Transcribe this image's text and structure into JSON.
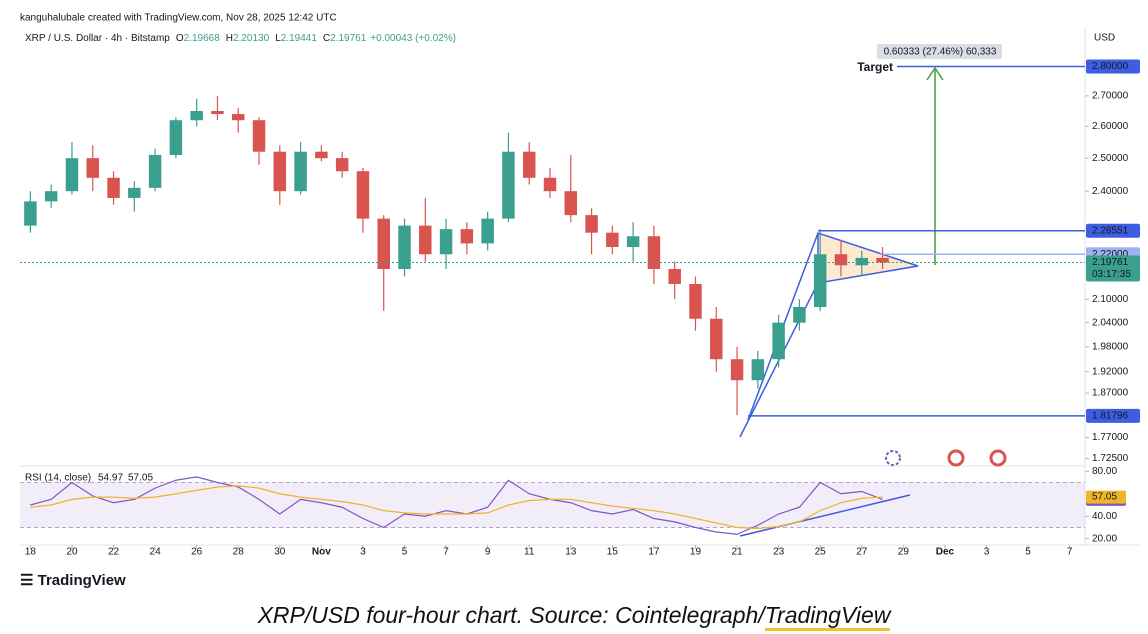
{
  "header": {
    "credit": "kanguhalubale created with TradingView.com, Nov 28, 2025 12:42 UTC",
    "symbol": "XRP / U.S. Dollar · 4h · Bitstamp",
    "ohlc": [
      {
        "key": "O",
        "value": "2.19668"
      },
      {
        "key": "H",
        "value": "2.20130"
      },
      {
        "key": "L",
        "value": "2.19441"
      },
      {
        "key": "C",
        "value": "2.19761"
      }
    ],
    "change": "+0.00043 (+0.02%)",
    "currency": "USD"
  },
  "chart_data": [
    {
      "type": "candlestick",
      "x": [
        1,
        2,
        3,
        4,
        5,
        6,
        7,
        8,
        9,
        10,
        11,
        12,
        13,
        14,
        15,
        16,
        17,
        18,
        19,
        20,
        21,
        22,
        23,
        24,
        25,
        26,
        27,
        28,
        29,
        30,
        31,
        32,
        33,
        34,
        35,
        36,
        37,
        38,
        39,
        40,
        41,
        42
      ],
      "ohlc": [
        [
          2.3,
          2.4,
          2.28,
          2.37
        ],
        [
          2.37,
          2.42,
          2.35,
          2.4
        ],
        [
          2.4,
          2.55,
          2.39,
          2.5
        ],
        [
          2.5,
          2.54,
          2.4,
          2.44
        ],
        [
          2.44,
          2.46,
          2.36,
          2.38
        ],
        [
          2.38,
          2.43,
          2.34,
          2.41
        ],
        [
          2.41,
          2.53,
          2.4,
          2.51
        ],
        [
          2.51,
          2.63,
          2.5,
          2.62
        ],
        [
          2.62,
          2.69,
          2.6,
          2.65
        ],
        [
          2.65,
          2.7,
          2.62,
          2.64
        ],
        [
          2.64,
          2.66,
          2.58,
          2.62
        ],
        [
          2.62,
          2.63,
          2.48,
          2.52
        ],
        [
          2.52,
          2.54,
          2.36,
          2.4
        ],
        [
          2.4,
          2.55,
          2.39,
          2.52
        ],
        [
          2.52,
          2.54,
          2.49,
          2.5
        ],
        [
          2.5,
          2.52,
          2.44,
          2.46
        ],
        [
          2.46,
          2.47,
          2.28,
          2.32
        ],
        [
          2.32,
          2.33,
          2.07,
          2.18
        ],
        [
          2.18,
          2.32,
          2.16,
          2.3
        ],
        [
          2.3,
          2.38,
          2.2,
          2.22
        ],
        [
          2.22,
          2.32,
          2.18,
          2.29
        ],
        [
          2.29,
          2.31,
          2.22,
          2.25
        ],
        [
          2.25,
          2.34,
          2.23,
          2.32
        ],
        [
          2.32,
          2.58,
          2.31,
          2.52
        ],
        [
          2.52,
          2.55,
          2.42,
          2.44
        ],
        [
          2.44,
          2.47,
          2.38,
          2.4
        ],
        [
          2.4,
          2.51,
          2.31,
          2.33
        ],
        [
          2.33,
          2.35,
          2.22,
          2.28
        ],
        [
          2.28,
          2.3,
          2.22,
          2.24
        ],
        [
          2.24,
          2.31,
          2.2,
          2.27
        ],
        [
          2.27,
          2.3,
          2.14,
          2.18
        ],
        [
          2.18,
          2.2,
          2.1,
          2.14
        ],
        [
          2.14,
          2.16,
          2.02,
          2.05
        ],
        [
          2.05,
          2.08,
          1.92,
          1.95
        ],
        [
          1.95,
          1.98,
          1.82,
          1.9
        ],
        [
          1.9,
          1.97,
          1.88,
          1.95
        ],
        [
          1.95,
          2.06,
          1.93,
          2.04
        ],
        [
          2.04,
          2.1,
          2.02,
          2.08
        ],
        [
          2.08,
          2.29,
          2.07,
          2.22
        ],
        [
          2.22,
          2.26,
          2.16,
          2.19
        ],
        [
          2.19,
          2.23,
          2.16,
          2.21
        ],
        [
          2.21,
          2.24,
          2.18,
          2.19761
        ]
      ],
      "up_color": "#3a9f8e",
      "down_color": "#d9534f",
      "log": true,
      "xlim": [
        0.5,
        51.5
      ],
      "xticks": [
        {
          "value": 1,
          "label": "18"
        },
        {
          "value": 3,
          "label": "20"
        },
        {
          "value": 5,
          "label": "22"
        },
        {
          "value": 7,
          "label": "24"
        },
        {
          "value": 9,
          "label": "26"
        },
        {
          "value": 11,
          "label": "28"
        },
        {
          "value": 13,
          "label": "30"
        },
        {
          "value": 15,
          "label": "Nov"
        },
        {
          "value": 17,
          "label": "3"
        },
        {
          "value": 19,
          "label": "5"
        },
        {
          "value": 21,
          "label": "7"
        },
        {
          "value": 23,
          "label": "9"
        },
        {
          "value": 25,
          "label": "11"
        },
        {
          "value": 27,
          "label": "13"
        },
        {
          "value": 29,
          "label": "15"
        },
        {
          "value": 31,
          "label": "17"
        },
        {
          "value": 33,
          "label": "19"
        },
        {
          "value": 35,
          "label": "21"
        },
        {
          "value": 37,
          "label": "23"
        },
        {
          "value": 39,
          "label": "25"
        },
        {
          "value": 41,
          "label": "27"
        },
        {
          "value": 43,
          "label": "29"
        },
        {
          "value": 45,
          "label": "Dec"
        },
        {
          "value": 47,
          "label": "3"
        },
        {
          "value": 49,
          "label": "5"
        },
        {
          "value": 51,
          "label": "7"
        }
      ],
      "ylim": [
        1.711,
        2.929
      ],
      "yticks": [
        {
          "value": 2.7,
          "label": "2.70000"
        },
        {
          "value": 2.6,
          "label": "2.60000"
        },
        {
          "value": 2.5,
          "label": "2.50000"
        },
        {
          "value": 2.4,
          "label": "2.40000"
        },
        {
          "value": 2.1,
          "label": "2.10000"
        },
        {
          "value": 2.04,
          "label": "2.04000"
        },
        {
          "value": 1.98,
          "label": "1.98000"
        },
        {
          "value": 1.92,
          "label": "1.92000"
        },
        {
          "value": 1.87,
          "label": "1.87000"
        },
        {
          "value": 1.77,
          "label": "1.77000"
        },
        {
          "value": 1.725,
          "label": "1.72500"
        }
      ],
      "price_lines": [
        {
          "value": 2.8,
          "label": "2.80000",
          "color": "#3d5ee0"
        },
        {
          "value": 2.28551,
          "label": "2.28551",
          "color": "#3d5ee0"
        },
        {
          "value": 2.22,
          "label": "2.22000",
          "color": "#9fb2f0"
        },
        {
          "value": 1.81796,
          "label": "1.81796",
          "color": "#3d5ee0"
        }
      ],
      "current_price": {
        "value": 2.19761,
        "label": "2.19761",
        "countdown": "03:17:35",
        "color": "#3a9f8e"
      },
      "annotations": {
        "target": "Target",
        "measure": "0.60333 (27.46%) 60,333"
      }
    },
    {
      "type": "line",
      "title": "RSI (14, close)",
      "x": [
        1,
        2,
        3,
        4,
        5,
        6,
        7,
        8,
        9,
        10,
        11,
        12,
        13,
        14,
        15,
        16,
        17,
        18,
        19,
        20,
        21,
        22,
        23,
        24,
        25,
        26,
        27,
        28,
        29,
        30,
        31,
        32,
        33,
        34,
        35,
        36,
        37,
        38,
        39,
        40,
        41,
        42
      ],
      "series": [
        {
          "color": "#7e57c2",
          "values": [
            50,
            55,
            70,
            58,
            52,
            55,
            65,
            72,
            75,
            70,
            66,
            55,
            42,
            55,
            52,
            48,
            38,
            30,
            42,
            40,
            45,
            42,
            48,
            72,
            60,
            55,
            52,
            45,
            42,
            46,
            38,
            35,
            30,
            26,
            24,
            32,
            42,
            48,
            70,
            60,
            62,
            54.97
          ]
        },
        {
          "color": "#f0b429",
          "values": [
            48,
            50,
            55,
            57,
            57,
            56,
            57,
            60,
            63,
            66,
            67,
            65,
            60,
            57,
            55,
            53,
            50,
            45,
            43,
            42,
            42,
            42,
            43,
            50,
            54,
            55,
            55,
            52,
            49,
            47,
            45,
            42,
            38,
            34,
            30,
            29,
            31,
            35,
            45,
            52,
            56,
            57.05
          ]
        }
      ],
      "ylim": [
        18,
        82
      ],
      "band": [
        30,
        70
      ],
      "yticks": [
        {
          "value": 80,
          "label": "80.00"
        },
        {
          "value": 40,
          "label": "40.00"
        },
        {
          "value": 20,
          "label": "20.00"
        }
      ]
    }
  ],
  "logo": "TradingView",
  "caption": {
    "text": "XRP/USD four-hour chart. Source: Cointelegraph/",
    "link": "TradingView"
  }
}
